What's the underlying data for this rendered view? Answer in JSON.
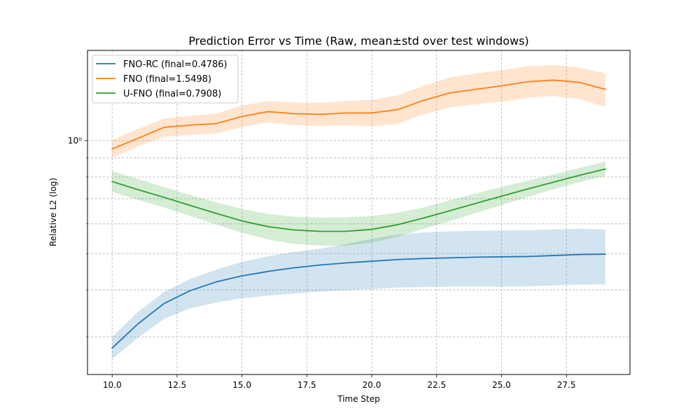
{
  "chart_data": {
    "type": "line",
    "title": "Prediction Error vs Time (Raw, mean±std over test windows)",
    "xlabel": "Time Step",
    "ylabel": "Relative L2 (log)",
    "y_scale": "log",
    "xlim": [
      9.05,
      29.95
    ],
    "ylim": [
      0.238,
      1.74
    ],
    "grid": true,
    "grid_style": "dashed",
    "legend_position": "top-left",
    "x_ticks": [
      10.0,
      12.5,
      15.0,
      17.5,
      20.0,
      22.5,
      25.0,
      27.5
    ],
    "x_tick_labels": [
      "10.0",
      "12.5",
      "15.0",
      "17.5",
      "20.0",
      "22.5",
      "25.0",
      "27.5"
    ],
    "y_major_ticks": [
      1.0
    ],
    "y_major_tick_labels": [
      "10⁰"
    ],
    "y_minor_ticks": [
      0.3,
      0.4,
      0.5,
      0.6,
      0.7,
      0.8,
      0.9
    ],
    "x": [
      10,
      11,
      12,
      13,
      14,
      15,
      16,
      17,
      18,
      19,
      20,
      21,
      22,
      23,
      24,
      25,
      26,
      27,
      28,
      29
    ],
    "series": [
      {
        "name": "FNO-RC (final=0.4786)",
        "color": "#1f77b4",
        "band_alpha": 0.2,
        "values": [
          0.28,
          0.325,
          0.368,
          0.398,
          0.42,
          0.436,
          0.448,
          0.458,
          0.466,
          0.472,
          0.477,
          0.482,
          0.485,
          0.487,
          0.489,
          0.49,
          0.491,
          0.494,
          0.497,
          0.498
        ],
        "lower": [
          0.262,
          0.298,
          0.335,
          0.357,
          0.37,
          0.38,
          0.386,
          0.391,
          0.396,
          0.399,
          0.402,
          0.406,
          0.407,
          0.408,
          0.408,
          0.408,
          0.409,
          0.411,
          0.413,
          0.414
        ],
        "upper": [
          0.3,
          0.35,
          0.395,
          0.428,
          0.453,
          0.475,
          0.492,
          0.505,
          0.515,
          0.53,
          0.547,
          0.562,
          0.569,
          0.573,
          0.575,
          0.576,
          0.577,
          0.58,
          0.582,
          0.58
        ]
      },
      {
        "name": "FNO (final=1.5498)",
        "color": "#ff7f0e",
        "band_alpha": 0.2,
        "values": [
          0.95,
          1.015,
          1.085,
          1.1,
          1.11,
          1.16,
          1.195,
          1.18,
          1.175,
          1.185,
          1.185,
          1.21,
          1.28,
          1.34,
          1.37,
          1.4,
          1.435,
          1.45,
          1.43,
          1.37
        ],
        "lower": [
          0.9,
          0.965,
          1.025,
          1.035,
          1.045,
          1.085,
          1.12,
          1.1,
          1.095,
          1.1,
          1.09,
          1.11,
          1.175,
          1.225,
          1.25,
          1.27,
          1.3,
          1.315,
          1.29,
          1.23
        ],
        "upper": [
          1.005,
          1.075,
          1.145,
          1.165,
          1.18,
          1.24,
          1.275,
          1.265,
          1.26,
          1.275,
          1.285,
          1.32,
          1.4,
          1.475,
          1.51,
          1.54,
          1.58,
          1.59,
          1.565,
          1.51
        ]
      },
      {
        "name": "U-FNO (final=0.7908)",
        "color": "#2ca02c",
        "band_alpha": 0.2,
        "values": [
          0.778,
          0.74,
          0.706,
          0.672,
          0.64,
          0.611,
          0.59,
          0.578,
          0.573,
          0.573,
          0.58,
          0.597,
          0.622,
          0.65,
          0.68,
          0.711,
          0.743,
          0.775,
          0.808,
          0.84
        ],
        "lower": [
          0.73,
          0.695,
          0.663,
          0.63,
          0.598,
          0.568,
          0.545,
          0.531,
          0.525,
          0.525,
          0.535,
          0.555,
          0.582,
          0.61,
          0.641,
          0.673,
          0.707,
          0.742,
          0.775,
          0.805
        ],
        "upper": [
          0.83,
          0.79,
          0.752,
          0.717,
          0.685,
          0.657,
          0.638,
          0.627,
          0.623,
          0.625,
          0.63,
          0.642,
          0.664,
          0.693,
          0.723,
          0.752,
          0.782,
          0.812,
          0.845,
          0.88
        ]
      }
    ]
  }
}
